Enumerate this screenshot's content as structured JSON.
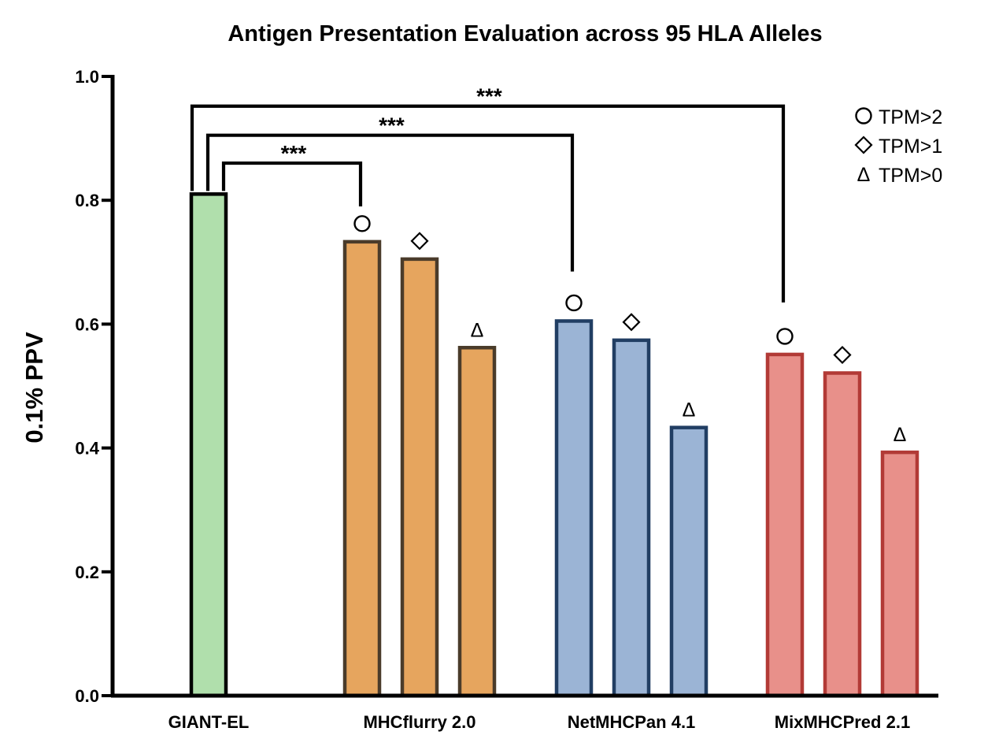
{
  "chart_data": {
    "type": "bar",
    "title": "Antigen Presentation Evaluation across 95 HLA Alleles",
    "ylabel": "0.1% PPV",
    "xlabel": "",
    "ylim": [
      0,
      1.0
    ],
    "yticks": [
      "0.0",
      "0.2",
      "0.4",
      "0.6",
      "0.8",
      "1.0"
    ],
    "grid": false,
    "groups": [
      {
        "name": "GIANT-EL",
        "fill": "#b0dfac",
        "stroke": "#000000",
        "bars": [
          {
            "value": 0.81,
            "marker": ""
          }
        ]
      },
      {
        "name": "MHCflurry 2.0",
        "fill": "#e6a55e",
        "stroke": "#4a3b2a",
        "bars": [
          {
            "value": 0.733,
            "marker": "circle"
          },
          {
            "value": 0.705,
            "marker": "diamond"
          },
          {
            "value": 0.562,
            "marker": "triangle"
          }
        ]
      },
      {
        "name": "NetMHCPan 4.1",
        "fill": "#9bb4d5",
        "stroke": "#213e63",
        "bars": [
          {
            "value": 0.605,
            "marker": "circle"
          },
          {
            "value": 0.574,
            "marker": "diamond"
          },
          {
            "value": 0.433,
            "marker": "triangle"
          }
        ]
      },
      {
        "name": "MixMHCPred 2.1",
        "fill": "#e8908a",
        "stroke": "#b23a36",
        "bars": [
          {
            "value": 0.551,
            "marker": "circle"
          },
          {
            "value": 0.521,
            "marker": "diamond"
          },
          {
            "value": 0.393,
            "marker": "triangle"
          }
        ]
      }
    ],
    "significance": [
      {
        "from": "GIANT-EL",
        "to": "MHCflurry 2.0",
        "label": "***",
        "level": 0.86,
        "end_value": 0.79
      },
      {
        "from": "GIANT-EL",
        "to": "NetMHCPan 4.1",
        "label": "***",
        "level": 0.905,
        "end_value": 0.685
      },
      {
        "from": "GIANT-EL",
        "to": "MixMHCPred 2.1",
        "label": "***",
        "level": 0.952,
        "end_value": 0.635
      }
    ],
    "legend": {
      "position": "top-right",
      "entries": [
        {
          "marker": "circle",
          "label": "TPM>2"
        },
        {
          "marker": "diamond",
          "label": "TPM>1"
        },
        {
          "marker": "triangle",
          "label": "TPM>0"
        }
      ]
    }
  }
}
